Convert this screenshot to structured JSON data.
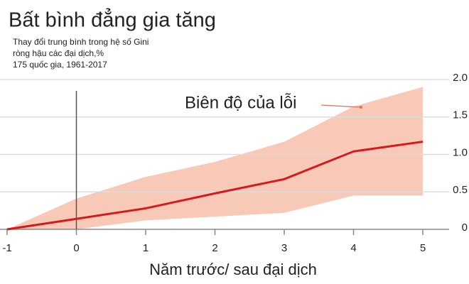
{
  "chart_data": {
    "type": "line",
    "title": "Bất bình đẳng gia tăng",
    "subtitle": [
      "Thay đổi trung bình trong hệ số Gini",
      "ròng hậu các đại dịch,%",
      "175 quốc gia, 1961-2017"
    ],
    "xlabel": "Năm trước/ sau đại dịch",
    "x": [
      -1,
      0,
      1,
      2,
      3,
      4,
      5
    ],
    "values": [
      0,
      0.14,
      0.28,
      0.48,
      0.67,
      1.04,
      1.17
    ],
    "color": "#d7191c",
    "band": {
      "label": "Biên độ của lỗi",
      "color": "#f9c9b8",
      "lower": [
        0,
        0,
        0.12,
        0.17,
        0.22,
        0.45,
        0.45
      ],
      "upper": [
        0,
        0.41,
        0.7,
        0.9,
        1.17,
        1.64,
        1.9
      ]
    },
    "xlim": [
      -1,
      5
    ],
    "xticks": [
      -1,
      0,
      1,
      2,
      3,
      4,
      5
    ],
    "ylim": [
      0,
      2
    ],
    "yticks": [
      0,
      0.5,
      {
        "value": 1,
        "label": "1.0"
      },
      1.5,
      {
        "value": 2,
        "label": "2.0"
      }
    ],
    "grid": true
  }
}
